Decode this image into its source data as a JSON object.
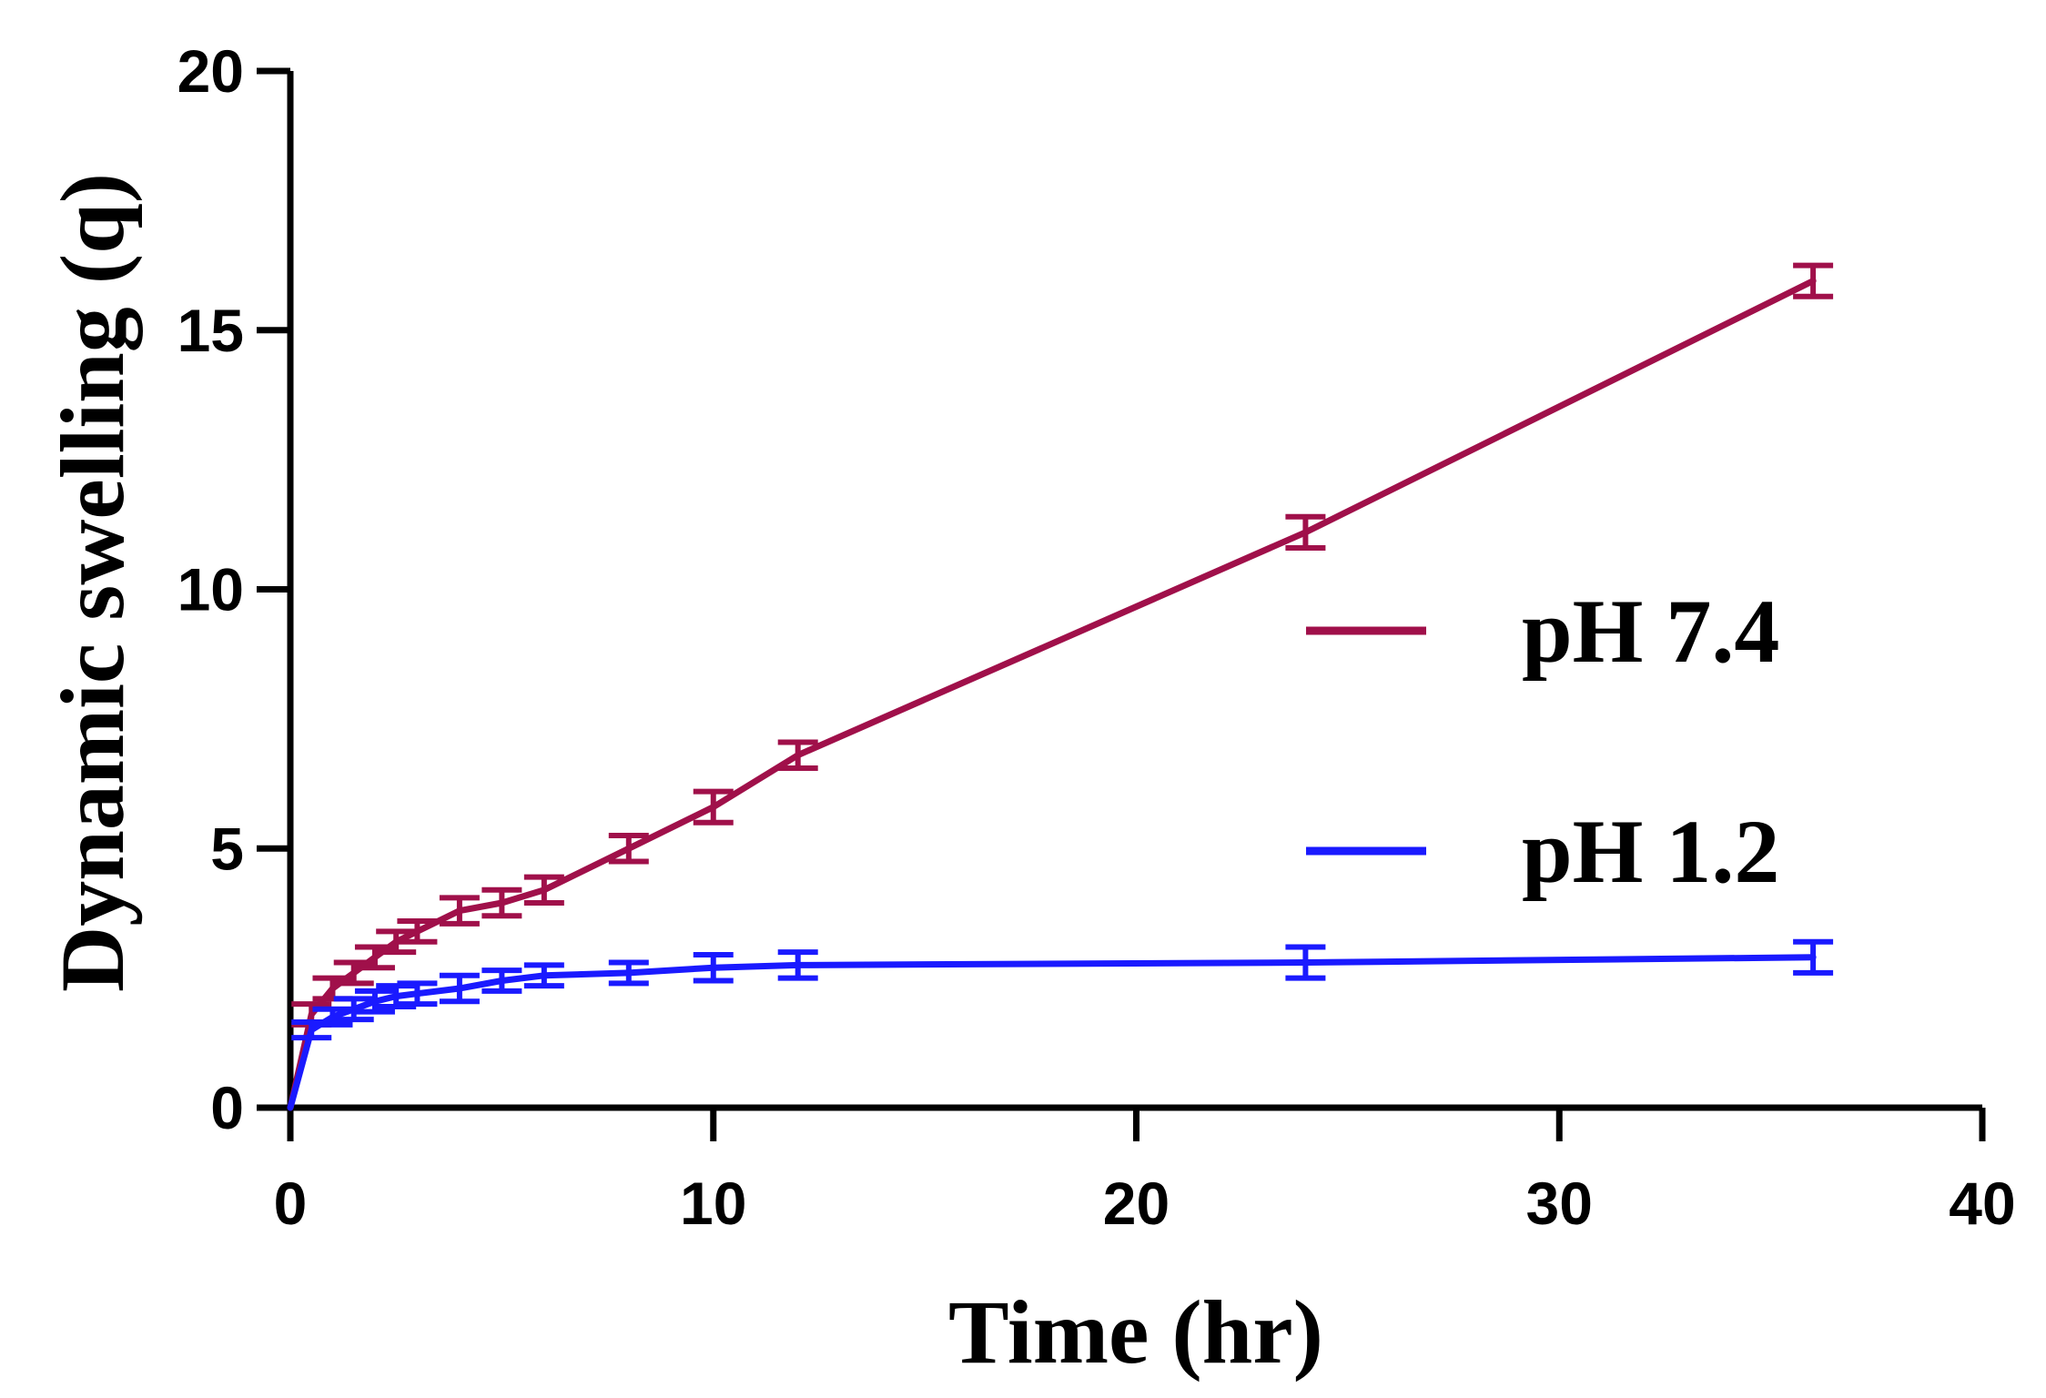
{
  "chart_data": {
    "type": "line",
    "title": "",
    "xlabel": "Time (hr)",
    "ylabel": "Dynamic swelling (q)",
    "xlim": [
      0,
      40
    ],
    "ylim": [
      0,
      20
    ],
    "xticks": [
      0,
      10,
      20,
      30,
      40
    ],
    "yticks": [
      0,
      5,
      10,
      15,
      20
    ],
    "xtick_labels": [
      "0",
      "10",
      "20",
      "30",
      "40"
    ],
    "ytick_labels": [
      "0",
      "5",
      "10",
      "15",
      "20"
    ],
    "grid": false,
    "legend_position": "right",
    "series": [
      {
        "name": "pH 7.4",
        "color": "#a0104a",
        "points": [
          {
            "x": 0,
            "y": 0,
            "err": 0
          },
          {
            "x": 0.5,
            "y": 1.8,
            "err": 0.2
          },
          {
            "x": 1,
            "y": 2.3,
            "err": 0.2
          },
          {
            "x": 1.5,
            "y": 2.6,
            "err": 0.2
          },
          {
            "x": 2,
            "y": 2.9,
            "err": 0.2
          },
          {
            "x": 2.5,
            "y": 3.2,
            "err": 0.2
          },
          {
            "x": 3,
            "y": 3.4,
            "err": 0.2
          },
          {
            "x": 4,
            "y": 3.8,
            "err": 0.25
          },
          {
            "x": 5,
            "y": 3.95,
            "err": 0.25
          },
          {
            "x": 6,
            "y": 4.2,
            "err": 0.25
          },
          {
            "x": 8,
            "y": 5.0,
            "err": 0.25
          },
          {
            "x": 10,
            "y": 5.8,
            "err": 0.3
          },
          {
            "x": 12,
            "y": 6.8,
            "err": 0.25
          },
          {
            "x": 24,
            "y": 11.1,
            "err": 0.3
          },
          {
            "x": 36,
            "y": 15.95,
            "err": 0.3
          }
        ]
      },
      {
        "name": "pH 1.2",
        "color": "#1a1aff",
        "points": [
          {
            "x": 0,
            "y": 0,
            "err": 0
          },
          {
            "x": 0.5,
            "y": 1.5,
            "err": 0.15
          },
          {
            "x": 1,
            "y": 1.75,
            "err": 0.15
          },
          {
            "x": 1.5,
            "y": 1.9,
            "err": 0.2
          },
          {
            "x": 2,
            "y": 2.05,
            "err": 0.2
          },
          {
            "x": 2.5,
            "y": 2.15,
            "err": 0.2
          },
          {
            "x": 3,
            "y": 2.2,
            "err": 0.2
          },
          {
            "x": 4,
            "y": 2.3,
            "err": 0.25
          },
          {
            "x": 5,
            "y": 2.45,
            "err": 0.2
          },
          {
            "x": 6,
            "y": 2.55,
            "err": 0.2
          },
          {
            "x": 8,
            "y": 2.6,
            "err": 0.2
          },
          {
            "x": 10,
            "y": 2.7,
            "err": 0.25
          },
          {
            "x": 12,
            "y": 2.75,
            "err": 0.25
          },
          {
            "x": 24,
            "y": 2.8,
            "err": 0.3
          },
          {
            "x": 36,
            "y": 2.9,
            "err": 0.3
          }
        ]
      }
    ]
  }
}
